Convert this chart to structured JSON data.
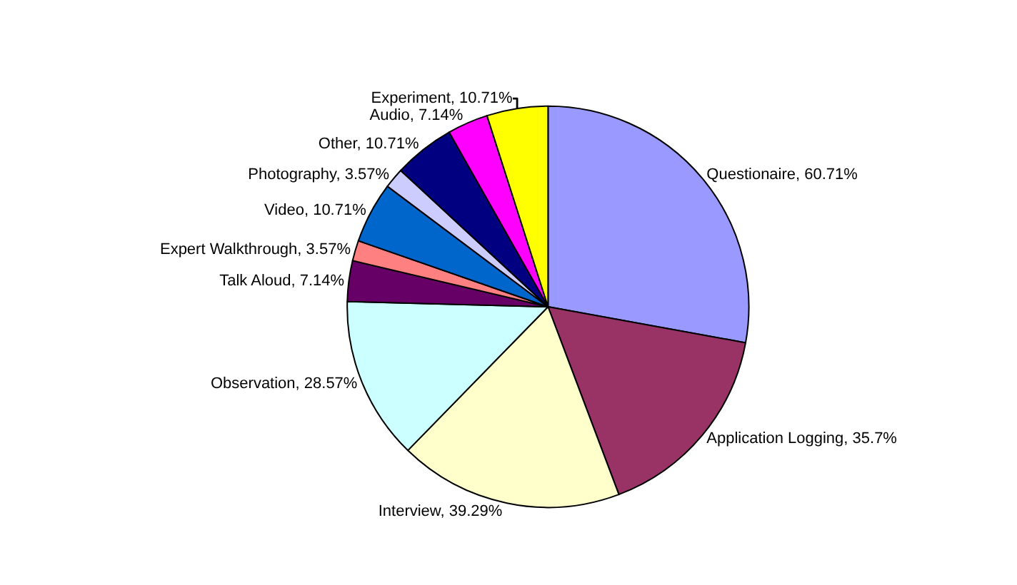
{
  "chart_data": {
    "type": "pie",
    "categories": [
      "Questionaire",
      "Application Logging",
      "Interview",
      "Observation",
      "Talk Aloud",
      "Expert Walkthrough",
      "Video",
      "Photography",
      "Other",
      "Audio",
      "Experiment"
    ],
    "values": [
      60.71,
      35.7,
      39.29,
      28.57,
      7.14,
      3.57,
      10.71,
      3.57,
      10.71,
      7.14,
      10.71
    ],
    "value_labels": [
      "60.71%",
      "35.7%",
      "39.29%",
      "28.57%",
      "7.14%",
      "3.57%",
      "10.71%",
      "3.57%",
      "10.71%",
      "7.14%",
      "10.71%"
    ],
    "colors": [
      "#9999ff",
      "#993366",
      "#ffffcc",
      "#ccffff",
      "#660066",
      "#ff8080",
      "#0066cc",
      "#ccccff",
      "#000080",
      "#ff00ff",
      "#ffff00"
    ],
    "legend": false
  }
}
